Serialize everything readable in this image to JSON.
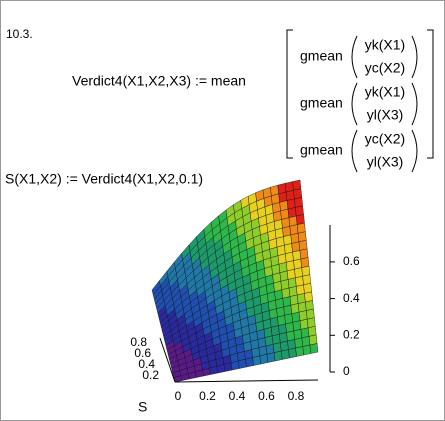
{
  "label": "10.3.",
  "definition": {
    "lhs": "Verdict4(X1,X2,X3) := mean",
    "rows": [
      {
        "func": "gmean",
        "top": "yk(X1)",
        "bottom": "yc(X2)"
      },
      {
        "func": "gmean",
        "top": "yk(X1)",
        "bottom": "yl(X3)"
      },
      {
        "func": "gmean",
        "top": "yc(X2)",
        "bottom": "yl(X3)"
      }
    ]
  },
  "surface_definition": "S(X1,X2) := Verdict4(X1,X2,0.1)",
  "plot": {
    "z_ticks": [
      "0",
      "0.2",
      "0.4",
      "0.6"
    ],
    "x_ticks": [
      "0",
      "0.2",
      "0.4",
      "0.6",
      "0.8"
    ],
    "y_ticks": [
      "0.2",
      "0.4",
      "0.6",
      "0.8"
    ],
    "axis_label": "S"
  }
}
